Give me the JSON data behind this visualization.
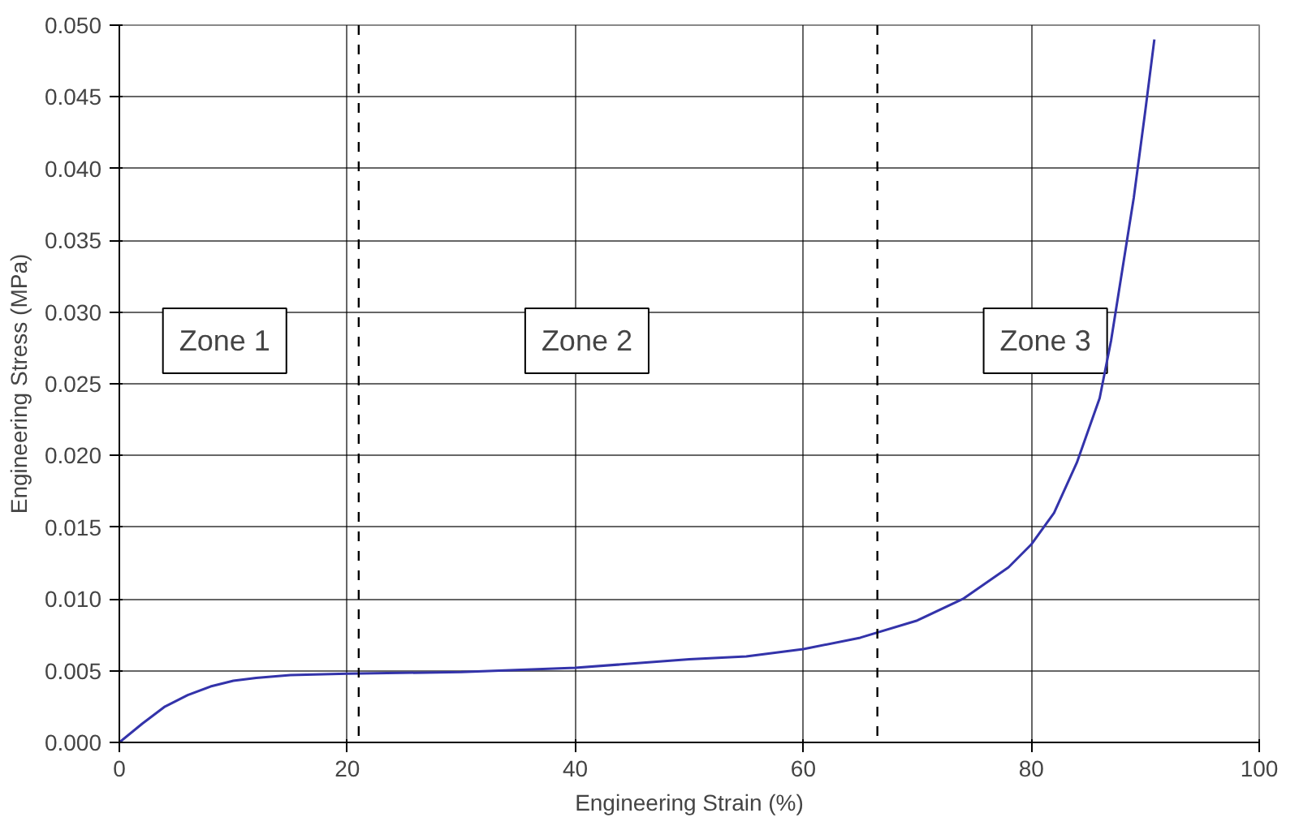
{
  "chart_data": {
    "type": "line",
    "xlabel": "Engineering Strain (%)",
    "ylabel": "Engineering Stress (MPa)",
    "x": [
      0,
      2,
      4,
      6,
      8,
      10,
      12,
      15,
      20,
      30,
      40,
      50,
      55,
      60,
      65,
      70,
      74,
      78,
      80,
      82,
      84,
      86,
      87,
      88,
      89,
      90,
      90.8
    ],
    "series": [
      {
        "color": "#3333aa",
        "values": [
          0,
          0.0013,
          0.0025,
          0.0033,
          0.0039,
          0.0043,
          0.0045,
          0.0047,
          0.0048,
          0.0049,
          0.0052,
          0.0058,
          0.006,
          0.0065,
          0.0073,
          0.0085,
          0.01,
          0.0122,
          0.0138,
          0.016,
          0.0195,
          0.024,
          0.028,
          0.033,
          0.038,
          0.044,
          0.049
        ]
      }
    ],
    "xlim": [
      0,
      100
    ],
    "xticks": [
      0,
      20,
      40,
      60,
      80,
      100
    ],
    "ylim": [
      0,
      0.05
    ],
    "yticks": [
      {
        "value": 0,
        "label": "0.000"
      },
      {
        "value": 0.005,
        "label": "0.005"
      },
      {
        "value": 0.01,
        "label": "0.010"
      },
      {
        "value": 0.015,
        "label": "0.015"
      },
      {
        "value": 0.02,
        "label": "0.020"
      },
      {
        "value": 0.025,
        "label": "0.025"
      },
      {
        "value": 0.03,
        "label": "0.030"
      },
      {
        "value": 0.035,
        "label": "0.035"
      },
      {
        "value": 0.04,
        "label": "0.040"
      },
      {
        "value": 0.045,
        "label": "0.045"
      },
      {
        "value": 0.05,
        "label": "0.050"
      }
    ],
    "ref_lines": [
      {
        "axis": "x",
        "value": 21,
        "line_style": "dashed",
        "color": "#000000"
      },
      {
        "axis": "x",
        "value": 66.5,
        "line_style": "dashed",
        "color": "#000000"
      }
    ],
    "annotations": [
      "Zone 1",
      "Zone 2",
      "Zone 3"
    ],
    "grid": true,
    "marker": "none",
    "line_style": "solid"
  }
}
